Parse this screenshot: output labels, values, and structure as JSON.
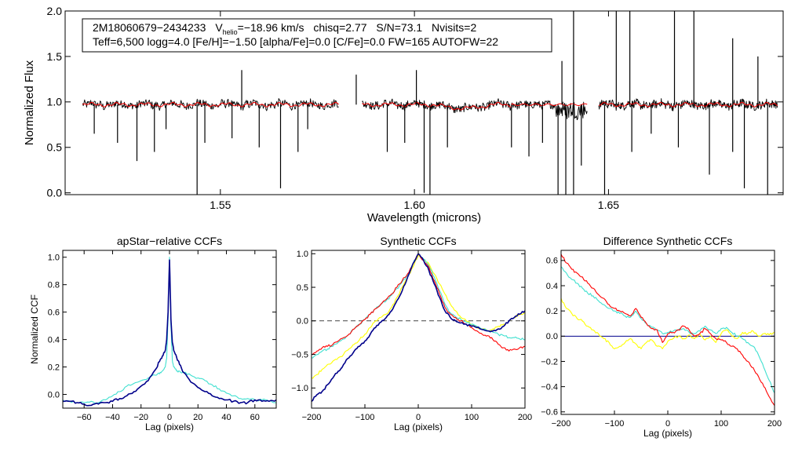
{
  "chart_data": [
    {
      "id": "spectrum",
      "type": "line",
      "title": "",
      "xlabel": "Wavelength (microns)",
      "ylabel": "Normalized Flux",
      "xlim": [
        1.51,
        1.695
      ],
      "ylim": [
        -0.02,
        2.0
      ],
      "xticks": [
        1.55,
        1.6,
        1.65
      ],
      "xtick_labels": [
        "1.55",
        "1.60",
        "1.65"
      ],
      "yticks": [
        0.0,
        0.5,
        1.0,
        1.5,
        2.0
      ],
      "ytick_labels": [
        "0.0",
        "0.5",
        "1.0",
        "1.5",
        "2.0"
      ],
      "segments": [
        [
          1.5145,
          1.5805
        ],
        [
          1.5865,
          1.6445
        ],
        [
          1.6475,
          1.6935
        ]
      ],
      "series": [
        {
          "name": "observed",
          "color": "#000000"
        },
        {
          "name": "model",
          "color": "#ff0000"
        }
      ],
      "annotation": {
        "object": "2M18060679−2434233",
        "vhelio_prefix": "V",
        "vhelio_sub": "helio",
        "vhelio_value": "=−18.96 km/s",
        "chisq": "chisq=2.77",
        "snr": "S/N=73.1",
        "nvisits": "Nvisits=2",
        "line2": "Teff=6,500 logg=4.0 [Fe/H]=−1.50 [alpha/Fe]=0.0 [C/Fe]=0.0 FW=165 AUTOFW=22"
      }
    },
    {
      "id": "apstar_ccf",
      "type": "line",
      "title": "apStar−relative CCFs",
      "xlabel": "Lag (pixels)",
      "ylabel": "Normalized CCF",
      "xlim": [
        -75,
        75
      ],
      "ylim": [
        -0.1,
        1.05
      ],
      "xticks": [
        -60,
        -40,
        -20,
        0,
        20,
        40,
        60
      ],
      "xtick_labels": [
        "−60",
        "−40",
        "−20",
        "0",
        "20",
        "40",
        "60"
      ],
      "yticks": [
        0.0,
        0.2,
        0.4,
        0.6,
        0.8,
        1.0
      ],
      "ytick_labels": [
        "0.0",
        "0.2",
        "0.4",
        "0.6",
        "0.8",
        "1.0"
      ],
      "series": [
        {
          "name": "combined",
          "color": "#00008b",
          "x": [
            -75,
            -70,
            -65,
            -60,
            -55,
            -50,
            -45,
            -40,
            -35,
            -30,
            -25,
            -20,
            -15,
            -10,
            -7,
            -5,
            -3,
            -2,
            -1,
            0,
            1,
            2,
            3,
            5,
            7,
            10,
            15,
            20,
            25,
            30,
            35,
            40,
            45,
            50,
            55,
            60,
            65,
            70,
            75
          ],
          "y": [
            -0.05,
            -0.05,
            -0.06,
            -0.07,
            -0.08,
            -0.07,
            -0.06,
            -0.05,
            -0.03,
            -0.01,
            0.02,
            0.06,
            0.1,
            0.18,
            0.24,
            0.28,
            0.32,
            0.4,
            0.6,
            0.98,
            0.55,
            0.38,
            0.32,
            0.27,
            0.22,
            0.16,
            0.09,
            0.05,
            0.02,
            -0.01,
            -0.03,
            -0.04,
            -0.05,
            -0.06,
            -0.06,
            -0.04,
            -0.05,
            -0.05,
            -0.04
          ]
        },
        {
          "name": "visit",
          "color": "#40e0d0",
          "x": [
            -75,
            -70,
            -65,
            -60,
            -55,
            -50,
            -45,
            -40,
            -35,
            -30,
            -25,
            -20,
            -15,
            -10,
            -7,
            -5,
            -3,
            -2,
            -1,
            0,
            1,
            2,
            3,
            5,
            7,
            10,
            15,
            20,
            25,
            30,
            35,
            40,
            45,
            50,
            55,
            60,
            65,
            70,
            75
          ],
          "y": [
            -0.04,
            -0.05,
            -0.06,
            -0.06,
            -0.05,
            -0.06,
            -0.04,
            -0.01,
            0.02,
            0.06,
            0.08,
            0.1,
            0.12,
            0.14,
            0.15,
            0.17,
            0.2,
            0.26,
            0.55,
            1.0,
            0.5,
            0.25,
            0.2,
            0.17,
            0.17,
            0.16,
            0.14,
            0.12,
            0.1,
            0.07,
            0.04,
            0.01,
            -0.01,
            -0.03,
            -0.03,
            -0.04,
            -0.04,
            -0.05,
            -0.06
          ]
        }
      ]
    },
    {
      "id": "synthetic_ccf",
      "type": "line",
      "title": "Synthetic CCFs",
      "xlabel": "Lag (pixels)",
      "ylabel": "",
      "xlim": [
        -200,
        200
      ],
      "ylim": [
        -1.3,
        1.05
      ],
      "xticks": [
        -200,
        -100,
        0,
        100,
        200
      ],
      "xtick_labels": [
        "−200",
        "−100",
        "0",
        "100",
        "200"
      ],
      "yticks": [
        -1.0,
        -0.5,
        0.0,
        0.5,
        1.0
      ],
      "ytick_labels": [
        "−1.0",
        "−0.5",
        "0.0",
        "0.5",
        "1.0"
      ],
      "zero_line": true,
      "series": [
        {
          "name": "blue",
          "color": "#00008b",
          "x": [
            -200,
            -190,
            -180,
            -170,
            -160,
            -150,
            -140,
            -130,
            -120,
            -110,
            -100,
            -90,
            -80,
            -70,
            -60,
            -50,
            -40,
            -30,
            -20,
            -10,
            0,
            10,
            20,
            30,
            40,
            50,
            60,
            70,
            80,
            90,
            100,
            110,
            120,
            130,
            140,
            150,
            160,
            170,
            180,
            190,
            200
          ],
          "y": [
            -1.2,
            -1.1,
            -1.05,
            -0.95,
            -0.85,
            -0.75,
            -0.65,
            -0.55,
            -0.45,
            -0.38,
            -0.3,
            -0.2,
            -0.1,
            -0.02,
            0.05,
            0.15,
            0.3,
            0.45,
            0.65,
            0.85,
            1.0,
            0.9,
            0.75,
            0.55,
            0.35,
            0.15,
            0.05,
            0.0,
            -0.03,
            -0.05,
            -0.08,
            -0.1,
            -0.13,
            -0.15,
            -0.15,
            -0.12,
            -0.08,
            0.0,
            0.05,
            0.1,
            0.15
          ]
        },
        {
          "name": "red",
          "color": "#ff0000",
          "x": [
            -200,
            -190,
            -180,
            -170,
            -160,
            -150,
            -140,
            -130,
            -120,
            -110,
            -100,
            -90,
            -80,
            -70,
            -60,
            -50,
            -40,
            -30,
            -20,
            -10,
            0,
            10,
            20,
            30,
            40,
            50,
            60,
            70,
            80,
            90,
            100,
            110,
            120,
            130,
            140,
            150,
            160,
            170,
            180,
            190,
            200
          ],
          "y": [
            -0.5,
            -0.45,
            -0.4,
            -0.38,
            -0.35,
            -0.3,
            -0.25,
            -0.2,
            -0.12,
            -0.05,
            0.02,
            0.1,
            0.18,
            0.25,
            0.32,
            0.4,
            0.5,
            0.6,
            0.7,
            0.85,
            1.0,
            0.9,
            0.8,
            0.6,
            0.4,
            0.2,
            0.1,
            0.05,
            0.0,
            -0.05,
            -0.1,
            -0.15,
            -0.2,
            -0.22,
            -0.28,
            -0.35,
            -0.4,
            -0.45,
            -0.42,
            -0.4,
            -0.38
          ]
        },
        {
          "name": "cyan",
          "color": "#40e0d0",
          "x": [
            -200,
            -190,
            -180,
            -170,
            -160,
            -150,
            -140,
            -130,
            -120,
            -110,
            -100,
            -90,
            -80,
            -70,
            -60,
            -50,
            -40,
            -30,
            -20,
            -10,
            0,
            10,
            20,
            30,
            40,
            50,
            60,
            70,
            80,
            90,
            100,
            110,
            120,
            130,
            140,
            150,
            160,
            170,
            180,
            190,
            200
          ],
          "y": [
            -0.55,
            -0.5,
            -0.45,
            -0.42,
            -0.38,
            -0.32,
            -0.27,
            -0.2,
            -0.12,
            -0.05,
            0.02,
            0.1,
            0.18,
            0.24,
            0.3,
            0.38,
            0.48,
            0.58,
            0.68,
            0.85,
            1.0,
            0.92,
            0.82,
            0.65,
            0.45,
            0.25,
            0.12,
            0.06,
            0.02,
            -0.02,
            -0.05,
            -0.08,
            -0.12,
            -0.15,
            -0.17,
            -0.2,
            -0.22,
            -0.25,
            -0.25,
            -0.27,
            -0.28
          ]
        },
        {
          "name": "yellow",
          "color": "#ffff00",
          "x": [
            -200,
            -190,
            -180,
            -170,
            -160,
            -150,
            -140,
            -130,
            -120,
            -110,
            -100,
            -90,
            -80,
            -70,
            -60,
            -50,
            -40,
            -30,
            -20,
            -10,
            0,
            10,
            20,
            30,
            40,
            50,
            60,
            70,
            80,
            90,
            100,
            110,
            120,
            130,
            140,
            150,
            160,
            170,
            180,
            190,
            200
          ],
          "y": [
            -0.85,
            -0.8,
            -0.72,
            -0.65,
            -0.6,
            -0.55,
            -0.5,
            -0.42,
            -0.35,
            -0.28,
            -0.2,
            -0.1,
            0.0,
            0.05,
            0.1,
            0.2,
            0.35,
            0.5,
            0.65,
            0.8,
            0.98,
            0.92,
            0.85,
            0.7,
            0.55,
            0.4,
            0.25,
            0.15,
            0.05,
            0.0,
            -0.05,
            -0.1,
            -0.12,
            -0.15,
            -0.12,
            -0.08,
            -0.05,
            0.0,
            0.05,
            0.1,
            0.12
          ]
        }
      ]
    },
    {
      "id": "difference_ccf",
      "type": "line",
      "title": "Difference Synthetic CCFs",
      "xlabel": "Lag (pixels)",
      "ylabel": "",
      "xlim": [
        -200,
        200
      ],
      "ylim": [
        -0.62,
        0.68
      ],
      "xticks": [
        -200,
        -100,
        0,
        100,
        200
      ],
      "xtick_labels": [
        "−200",
        "−100",
        "0",
        "100",
        "200"
      ],
      "yticks": [
        -0.6,
        -0.4,
        -0.2,
        0.0,
        0.2,
        0.4,
        0.6
      ],
      "ytick_labels": [
        "−0.6",
        "−0.4",
        "−0.2",
        "0.0",
        "0.2",
        "0.4",
        "0.6"
      ],
      "zero_line": true,
      "series": [
        {
          "name": "red",
          "color": "#ff0000",
          "x": [
            -200,
            -190,
            -180,
            -170,
            -160,
            -150,
            -140,
            -130,
            -120,
            -110,
            -100,
            -90,
            -80,
            -70,
            -60,
            -50,
            -40,
            -30,
            -20,
            -10,
            0,
            10,
            20,
            30,
            40,
            50,
            60,
            70,
            80,
            90,
            100,
            110,
            120,
            130,
            140,
            150,
            160,
            170,
            180,
            190,
            200
          ],
          "y": [
            0.65,
            0.58,
            0.53,
            0.5,
            0.47,
            0.42,
            0.38,
            0.33,
            0.3,
            0.25,
            0.22,
            0.2,
            0.18,
            0.16,
            0.22,
            0.15,
            0.1,
            0.06,
            0.05,
            -0.05,
            0.02,
            0.03,
            0.05,
            0.08,
            0.05,
            0.0,
            0.02,
            0.06,
            0.02,
            -0.02,
            -0.03,
            -0.05,
            -0.08,
            -0.1,
            -0.15,
            -0.2,
            -0.25,
            -0.32,
            -0.4,
            -0.48,
            -0.55
          ]
        },
        {
          "name": "cyan",
          "color": "#40e0d0",
          "x": [
            -200,
            -190,
            -180,
            -170,
            -160,
            -150,
            -140,
            -130,
            -120,
            -110,
            -100,
            -90,
            -80,
            -70,
            -60,
            -50,
            -40,
            -30,
            -20,
            -10,
            0,
            10,
            20,
            30,
            40,
            50,
            60,
            70,
            80,
            90,
            100,
            110,
            120,
            130,
            140,
            150,
            160,
            170,
            180,
            190,
            200
          ],
          "y": [
            0.55,
            0.5,
            0.45,
            0.42,
            0.38,
            0.34,
            0.32,
            0.28,
            0.25,
            0.22,
            0.2,
            0.18,
            0.16,
            0.15,
            0.2,
            0.14,
            0.1,
            0.07,
            0.05,
            0.02,
            0.03,
            0.04,
            0.05,
            0.06,
            0.03,
            0.02,
            0.04,
            0.08,
            0.05,
            0.02,
            0.06,
            0.07,
            0.03,
            0.0,
            -0.02,
            -0.05,
            -0.08,
            -0.15,
            -0.25,
            -0.35,
            -0.45
          ]
        },
        {
          "name": "yellow",
          "color": "#ffff00",
          "x": [
            -200,
            -190,
            -180,
            -170,
            -160,
            -150,
            -140,
            -130,
            -120,
            -110,
            -100,
            -90,
            -80,
            -70,
            -60,
            -50,
            -40,
            -30,
            -20,
            -10,
            0,
            10,
            20,
            30,
            40,
            50,
            60,
            70,
            80,
            90,
            100,
            110,
            120,
            130,
            140,
            150,
            160,
            170,
            180,
            190,
            200
          ],
          "y": [
            0.3,
            0.22,
            0.18,
            0.14,
            0.12,
            0.08,
            0.05,
            0.02,
            -0.02,
            -0.05,
            -0.1,
            -0.08,
            -0.05,
            -0.02,
            -0.06,
            -0.1,
            -0.05,
            -0.03,
            -0.08,
            -0.1,
            -0.04,
            -0.02,
            0.0,
            -0.02,
            0.01,
            -0.02,
            0.02,
            -0.03,
            0.0,
            -0.05,
            0.02,
            0.05,
            0.0,
            -0.02,
            0.03,
            0.02,
            0.04,
            0.0,
            0.02,
            0.01,
            0.03
          ]
        }
      ]
    }
  ]
}
